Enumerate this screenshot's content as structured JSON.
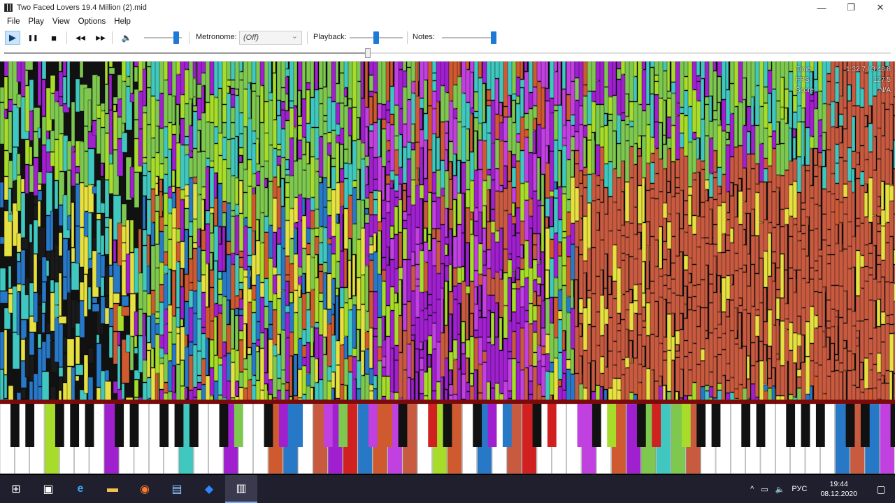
{
  "window": {
    "title": "Two Faced Lovers 19.4 Million (2).mid",
    "controls": {
      "minimize": "—",
      "maximize": "❐",
      "close": "✕"
    }
  },
  "menu": [
    "File",
    "Play",
    "View",
    "Options",
    "Help"
  ],
  "toolbar": {
    "play_icon": "▶",
    "pause_icon": "❚❚",
    "stop_icon": "■",
    "rewind_icon": "◀◀",
    "forward_icon": "▶▶",
    "volume_icon": "🔈",
    "volume_level": 0.92,
    "metronome_label": "Metronome:",
    "metronome_value": "(Off)",
    "playback_label": "Playback:",
    "playback_level": 0.5,
    "notes_label": "Notes:",
    "notes_level": 1.0,
    "seek_position": 0.41
  },
  "hud": {
    "time_label": "Time:",
    "time_value": "1:32.7 / 3:48.8",
    "fps_label": "FPS:",
    "fps_value": "127.5",
    "score_label": "Score:",
    "score_value": "N/A"
  },
  "colors": {
    "green": "#7ec850",
    "lime": "#a8dc2a",
    "cyan": "#40c8c0",
    "blue": "#2878c8",
    "purple": "#a020d0",
    "magenta": "#c040e0",
    "orange": "#d05a30",
    "brick": "#c85a40",
    "yellow": "#e6e040",
    "red": "#d02020"
  },
  "taskbar": {
    "icons": [
      {
        "name": "windows-start-icon",
        "glyph": "⊞"
      },
      {
        "name": "task-view-icon",
        "glyph": "▣"
      },
      {
        "name": "edge-icon",
        "glyph": "e"
      },
      {
        "name": "file-explorer-icon",
        "glyph": "▬"
      },
      {
        "name": "firefox-icon",
        "glyph": "◉"
      },
      {
        "name": "app-window-icon",
        "glyph": "▤"
      },
      {
        "name": "app-blue-icon",
        "glyph": "◆"
      },
      {
        "name": "piano-app-icon",
        "glyph": "▥"
      }
    ],
    "tray_up": "^",
    "tray_network": "▭",
    "tray_volume": "🔈",
    "language": "РУС",
    "time": "19:44",
    "date": "08.12.2020",
    "notification_icon": "▢"
  }
}
